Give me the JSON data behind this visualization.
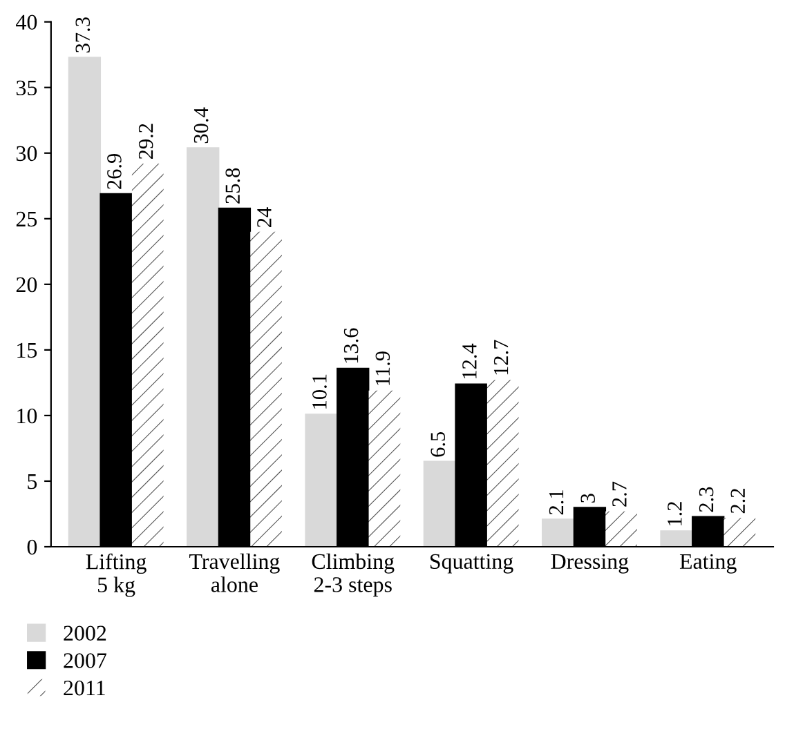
{
  "chart_data": {
    "type": "bar",
    "categories": [
      "Lifting\n5 kg",
      "Travelling\nalone",
      "Climbing\n2-3 steps",
      "Squatting",
      "Dressing",
      "Eating"
    ],
    "series": [
      {
        "name": "2002",
        "color": "#d9d9d9",
        "values": [
          37.3,
          30.4,
          10.1,
          6.5,
          2.1,
          1.2
        ]
      },
      {
        "name": "2007",
        "color": "#000000",
        "values": [
          26.9,
          25.8,
          13.6,
          12.4,
          3,
          2.3
        ]
      },
      {
        "name": "2011",
        "color": "#ffffff",
        "values": [
          29.2,
          24,
          11.9,
          12.7,
          2.7,
          2.2
        ]
      }
    ],
    "ylim": [
      0,
      40
    ],
    "yticks": [
      0,
      5,
      10,
      15,
      20,
      25,
      30,
      35,
      40
    ],
    "data_labels": true,
    "legend": "bottom left",
    "grid": false
  }
}
